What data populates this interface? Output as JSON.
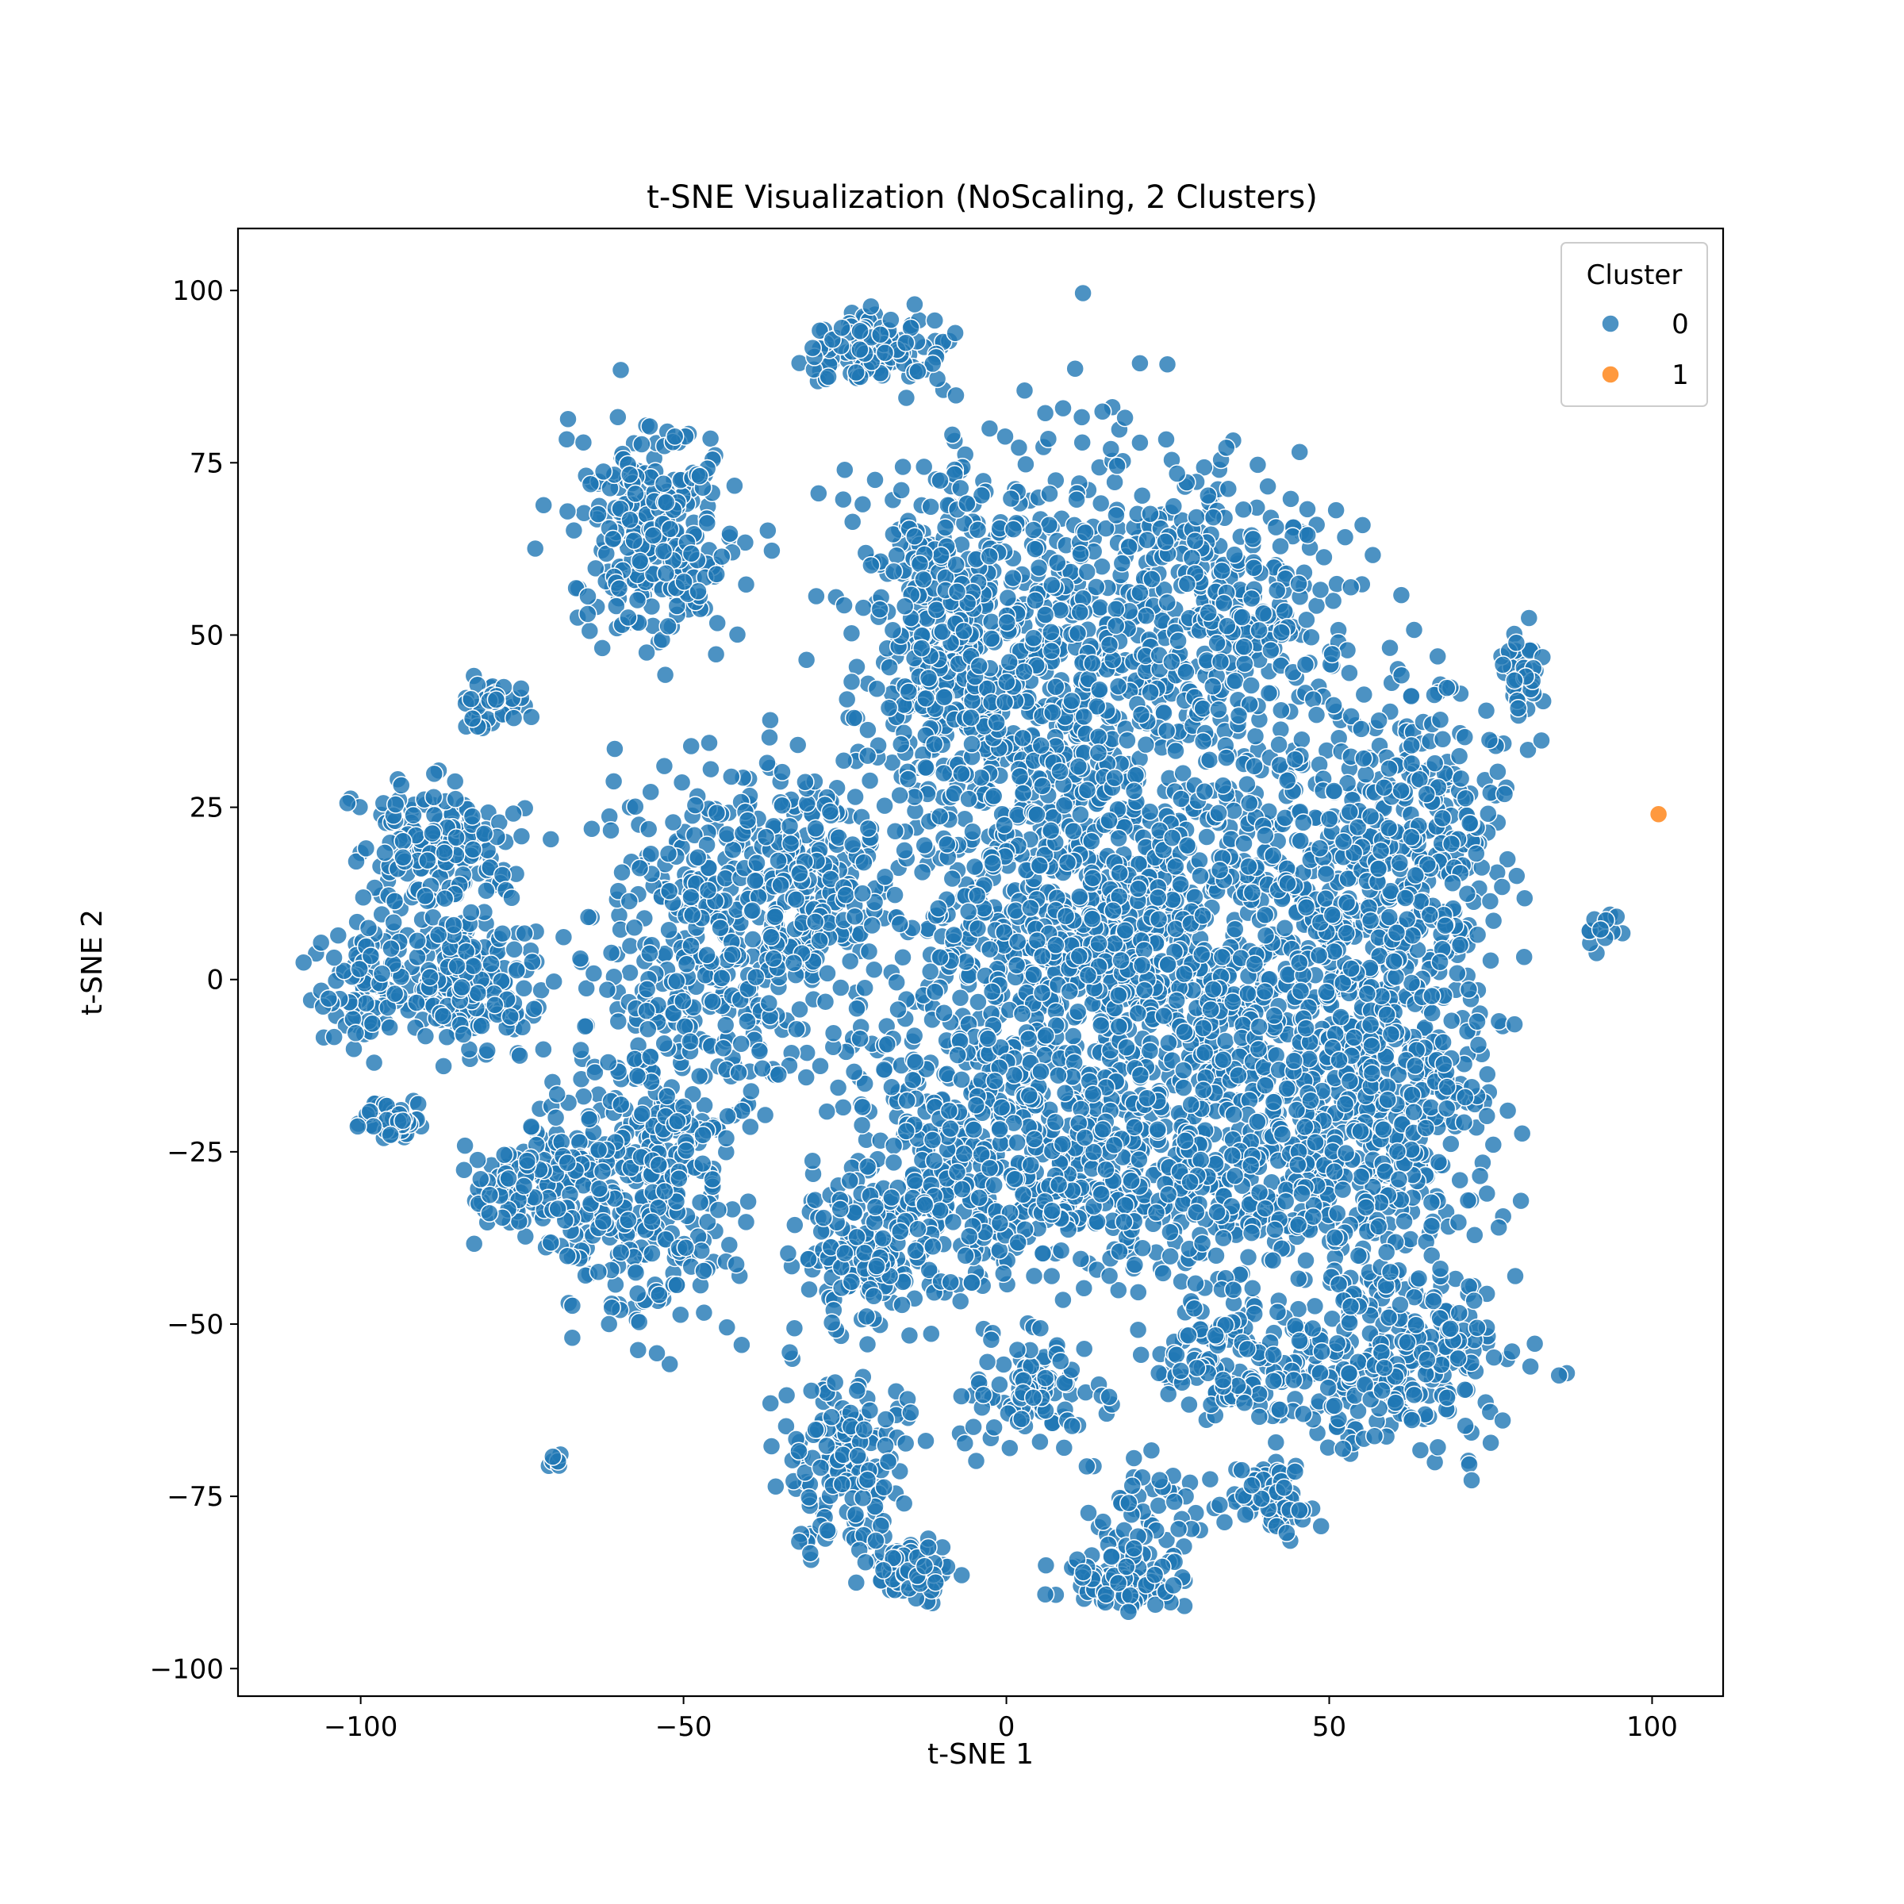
{
  "chart_data": {
    "type": "scatter",
    "title": "t-SNE Visualization (NoScaling, 2 Clusters)",
    "xlabel": "t-SNE 1",
    "ylabel": "t-SNE 2",
    "xlim": [
      -119,
      111
    ],
    "ylim": [
      -104,
      109
    ],
    "xticks": [
      -100,
      -50,
      0,
      50,
      100
    ],
    "yticks": [
      -100,
      -75,
      -50,
      -25,
      0,
      25,
      50,
      75,
      100
    ],
    "xtick_labels": [
      "−100",
      "−50",
      "0",
      "50",
      "100"
    ],
    "ytick_labels": [
      "−100",
      "−75",
      "−50",
      "−25",
      "0",
      "25",
      "50",
      "75",
      "100"
    ],
    "grid": false,
    "legend": {
      "title": "Cluster",
      "placement": "top-right",
      "entries": [
        "0",
        "1"
      ]
    },
    "series": [
      {
        "name": "0",
        "color": "#1f77b4",
        "clusters": [
          {
            "cx": 10,
            "cy": 35,
            "rx": 25,
            "ry": 40,
            "n": 900
          },
          {
            "cx": -10,
            "cy": 50,
            "rx": 14,
            "ry": 22,
            "n": 300
          },
          {
            "cx": 35,
            "cy": 55,
            "rx": 18,
            "ry": 18,
            "n": 260
          },
          {
            "cx": 20,
            "cy": 0,
            "rx": 35,
            "ry": 28,
            "n": 900
          },
          {
            "cx": 50,
            "cy": 10,
            "rx": 20,
            "ry": 28,
            "n": 400
          },
          {
            "cx": 65,
            "cy": 20,
            "rx": 12,
            "ry": 22,
            "n": 240
          },
          {
            "cx": 60,
            "cy": -20,
            "rx": 15,
            "ry": 20,
            "n": 300
          },
          {
            "cx": 30,
            "cy": -30,
            "rx": 30,
            "ry": 15,
            "n": 450
          },
          {
            "cx": -5,
            "cy": -25,
            "rx": 18,
            "ry": 18,
            "n": 300
          },
          {
            "cx": -20,
            "cy": -40,
            "rx": 12,
            "ry": 10,
            "n": 170
          },
          {
            "cx": 60,
            "cy": -55,
            "rx": 18,
            "ry": 12,
            "n": 300
          },
          {
            "cx": 35,
            "cy": -55,
            "rx": 10,
            "ry": 8,
            "n": 120
          },
          {
            "cx": 40,
            "cy": -75,
            "rx": 7,
            "ry": 5,
            "n": 70
          },
          {
            "cx": -45,
            "cy": 5,
            "rx": 16,
            "ry": 22,
            "n": 380
          },
          {
            "cx": -30,
            "cy": 15,
            "rx": 10,
            "ry": 15,
            "n": 180
          },
          {
            "cx": -55,
            "cy": -30,
            "rx": 12,
            "ry": 20,
            "n": 300
          },
          {
            "cx": -68,
            "cy": -28,
            "rx": 6,
            "ry": 10,
            "n": 90
          },
          {
            "cx": -78,
            "cy": -30,
            "rx": 5,
            "ry": 6,
            "n": 50
          },
          {
            "cx": -25,
            "cy": -70,
            "rx": 9,
            "ry": 12,
            "n": 170
          },
          {
            "cx": -15,
            "cy": -85,
            "rx": 7,
            "ry": 4,
            "n": 80
          },
          {
            "cx": 5,
            "cy": -60,
            "rx": 10,
            "ry": 7,
            "n": 100
          },
          {
            "cx": 22,
            "cy": -80,
            "rx": 7,
            "ry": 10,
            "n": 80
          },
          {
            "cx": 15,
            "cy": -88,
            "rx": 9,
            "ry": 4,
            "n": 60
          },
          {
            "cx": -55,
            "cy": 65,
            "rx": 12,
            "ry": 15,
            "n": 260
          },
          {
            "cx": -20,
            "cy": 92,
            "rx": 10,
            "ry": 5,
            "n": 110
          },
          {
            "cx": -88,
            "cy": 20,
            "rx": 12,
            "ry": 8,
            "n": 160
          },
          {
            "cx": -85,
            "cy": 0,
            "rx": 12,
            "ry": 10,
            "n": 220
          },
          {
            "cx": -100,
            "cy": 0,
            "rx": 6,
            "ry": 8,
            "n": 70
          },
          {
            "cx": -95,
            "cy": -20,
            "rx": 5,
            "ry": 3,
            "n": 50
          },
          {
            "cx": -80,
            "cy": 40,
            "rx": 5,
            "ry": 4,
            "n": 40
          },
          {
            "cx": -70,
            "cy": -70,
            "rx": 1.5,
            "ry": 1.5,
            "n": 6
          },
          {
            "cx": 80,
            "cy": 45,
            "rx": 3,
            "ry": 6,
            "n": 40
          },
          {
            "cx": 92,
            "cy": 7,
            "rx": 2.5,
            "ry": 3,
            "n": 15
          }
        ]
      },
      {
        "name": "1",
        "color": "#ff7f0e",
        "points": [
          {
            "x": 101,
            "y": 24
          }
        ]
      }
    ]
  }
}
